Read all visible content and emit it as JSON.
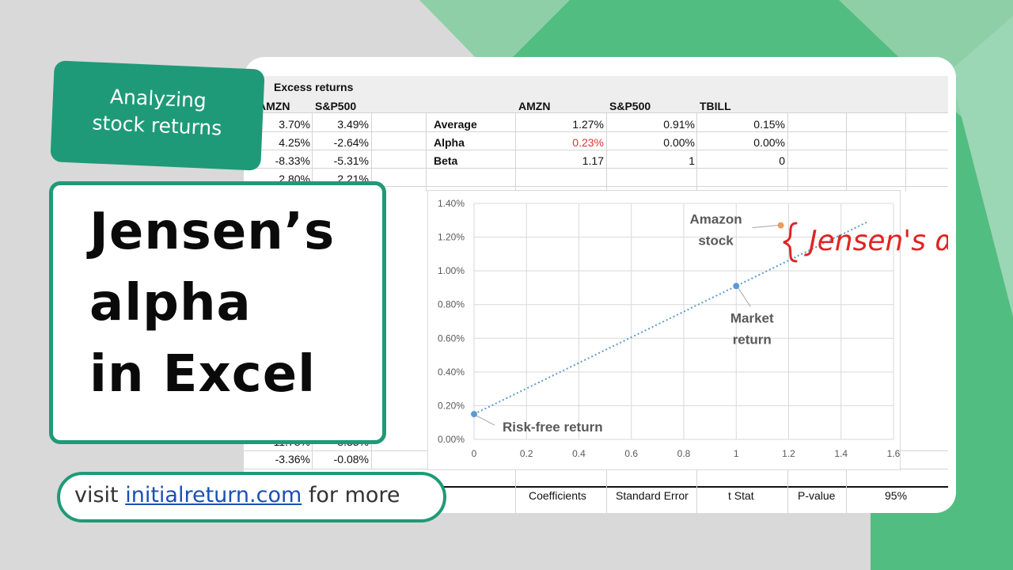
{
  "colors": {
    "brand": "#1f9a78",
    "background": "#d9d9d9",
    "alpha_text": "#e03131",
    "trendline": "#5b9bd5",
    "amazon_point": "#ed9b5b",
    "handwriting": "#e02424"
  },
  "tag": {
    "line1": "Analyzing",
    "line2": "stock returns"
  },
  "title": {
    "line1": "Jensen’s",
    "line2": "alpha",
    "line3": "in Excel"
  },
  "footer": {
    "prefix": "visit ",
    "link": "initialreturn.com",
    "suffix": " for more"
  },
  "sheet": {
    "section_title": "Excess returns",
    "left_headers": [
      "AMZN",
      "S&P500"
    ],
    "left_rows": [
      [
        "3.70%",
        "3.49%"
      ],
      [
        "4.25%",
        "-2.64%"
      ],
      [
        "-8.33%",
        "-5.31%"
      ],
      [
        "2.80%",
        "2.21%"
      ]
    ],
    "left_bottom_rows": [
      [
        "-11.78%",
        "-8.33%"
      ],
      [
        "-3.36%",
        "-0.08%"
      ]
    ],
    "stats_headers": [
      "AMZN",
      "S&P500",
      "TBILL"
    ],
    "stats_rows": [
      {
        "label": "Average",
        "values": [
          "1.27%",
          "0.91%",
          "0.15%"
        ]
      },
      {
        "label": "Alpha",
        "values": [
          "0.23%",
          "0.00%",
          "0.00%"
        ]
      },
      {
        "label": "Beta",
        "values": [
          "1.17",
          "1",
          "0"
        ]
      }
    ],
    "bottom_partial_headers": [
      "Coefficients",
      "Standard Error",
      "t Stat",
      "P-value",
      "95%"
    ]
  },
  "chart_data": {
    "type": "scatter",
    "xlim": [
      0,
      1.6
    ],
    "ylim": [
      0,
      1.4
    ],
    "x_ticks": [
      "0",
      "0.2",
      "0.4",
      "0.6",
      "0.8",
      "1",
      "1.2",
      "1.4",
      "1.6"
    ],
    "y_ticks": [
      "0.00%",
      "0.20%",
      "0.40%",
      "0.60%",
      "0.80%",
      "1.00%",
      "1.20%",
      "1.40%"
    ],
    "points": [
      {
        "x": 0,
        "y": 0.15,
        "label": "Risk-free return"
      },
      {
        "x": 1,
        "y": 0.91,
        "label_line1": "Market",
        "label_line2": "return"
      },
      {
        "x": 1.17,
        "y": 1.27,
        "label_line1": "Amazon",
        "label_line2": "stock"
      }
    ],
    "trendline": {
      "x_start": 0,
      "y_start": 0.15,
      "x_end": 1.5,
      "y_end": 1.29
    },
    "handwritten_annotation": "Jensen's α"
  }
}
